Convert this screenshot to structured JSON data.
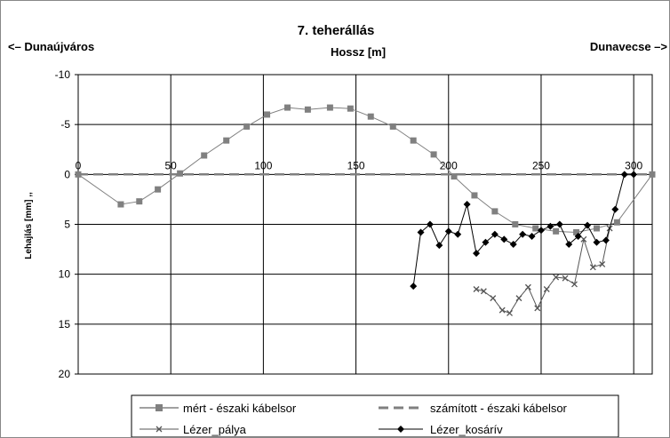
{
  "chart_data": {
    "type": "line",
    "title": "7. teherállás",
    "left_label": "<– Dunaújváros",
    "right_label": "Dunavecse –>",
    "xlabel": "Hossz [m]",
    "ylabel": "Lehajlás [mm] ,,",
    "xlim": [
      0,
      310
    ],
    "ylim": [
      -10,
      20
    ],
    "y_inverted": true,
    "grid": true,
    "legend_position": "bottom",
    "x_ticks": [
      0,
      50,
      100,
      150,
      200,
      250,
      300
    ],
    "y_ticks": [
      -10,
      -5,
      0,
      5,
      10,
      15,
      20
    ],
    "series": [
      {
        "name": "mért - északi kábelsor",
        "color": "#808080",
        "marker": "square",
        "dash": "solid",
        "x": [
          0,
          23,
          33,
          43,
          55,
          68,
          80,
          91,
          102,
          113,
          124,
          136,
          147,
          158,
          170,
          181,
          192,
          203,
          214,
          225,
          236,
          247,
          258,
          269,
          280,
          291,
          310
        ],
        "y": [
          0,
          3.0,
          2.7,
          1.5,
          -0.1,
          -1.9,
          -3.4,
          -4.8,
          -6.0,
          -6.7,
          -6.5,
          -6.7,
          -6.6,
          -5.8,
          -4.8,
          -3.4,
          -2.0,
          0.2,
          2.1,
          3.7,
          5.0,
          5.4,
          5.7,
          5.8,
          5.4,
          4.8,
          0
        ]
      },
      {
        "name": "számított - északi kábelsor",
        "color": "#808080",
        "marker": "none",
        "dash": "dashed",
        "x": [
          0,
          310
        ],
        "y": [
          0,
          0
        ]
      },
      {
        "name": "Lézer_pálya",
        "color": "#555555",
        "marker": "x",
        "dash": "solid",
        "x": [
          215,
          219,
          224,
          229,
          233,
          238,
          243,
          248,
          253,
          258,
          263,
          268,
          273,
          278,
          283,
          287
        ],
        "y": [
          11.5,
          11.7,
          12.4,
          13.6,
          13.9,
          12.4,
          11.3,
          13.4,
          11.5,
          10.3,
          10.4,
          11.0,
          6.5,
          9.3,
          9.0,
          5.4
        ]
      },
      {
        "name": "Lézer_kosárív",
        "color": "#000000",
        "marker": "diamond",
        "dash": "solid",
        "x": [
          181,
          185,
          190,
          195,
          200,
          205,
          210,
          215,
          220,
          225,
          230,
          235,
          240,
          245,
          250,
          255,
          260,
          265,
          270,
          275,
          280,
          285,
          290,
          295,
          300
        ],
        "y": [
          11.2,
          5.8,
          5.0,
          7.1,
          5.7,
          6.0,
          3.0,
          7.9,
          6.8,
          6.0,
          6.5,
          7.0,
          6.0,
          6.2,
          5.6,
          5.2,
          5.0,
          7.0,
          6.2,
          5.1,
          6.8,
          6.6,
          3.5,
          0,
          0
        ]
      }
    ]
  }
}
